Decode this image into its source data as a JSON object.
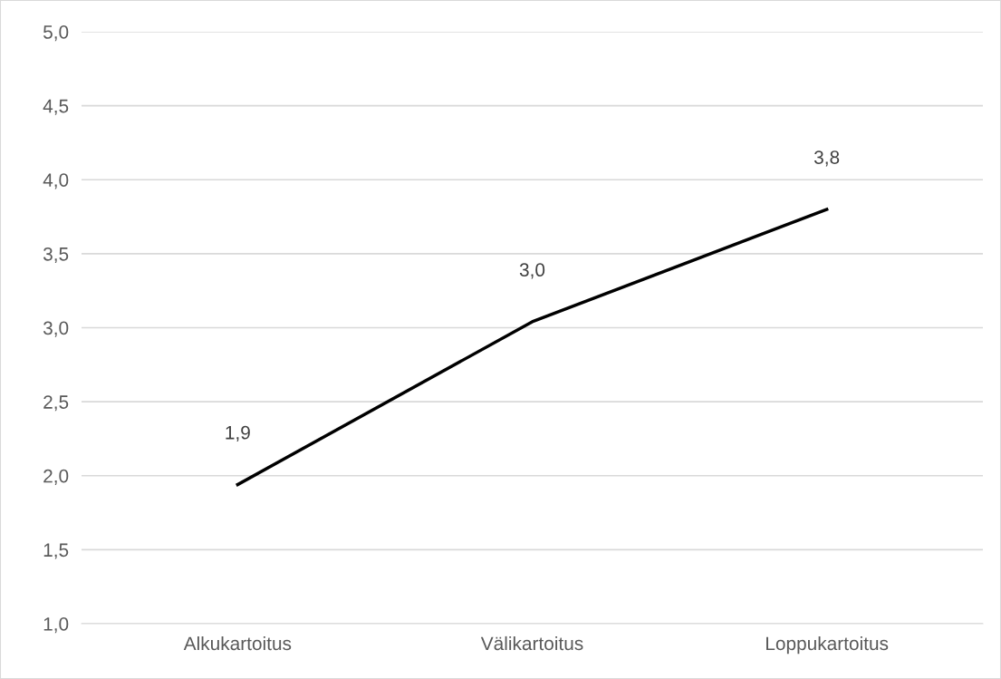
{
  "chart_data": {
    "type": "line",
    "categories": [
      "Alkukartoitus",
      "Välikartoitus",
      "Loppukartoitus"
    ],
    "series": [
      {
        "color": "#000000",
        "values": [
          1.94,
          3.04,
          3.8
        ],
        "value_labels": [
          "1,9",
          "3,0",
          "3,8"
        ]
      }
    ],
    "ylim": [
      1.0,
      5.0
    ],
    "yticks": [
      {
        "value": 1.0,
        "label": "1,0"
      },
      {
        "value": 1.5,
        "label": "1,5"
      },
      {
        "value": 2.0,
        "label": "2,0"
      },
      {
        "value": 2.5,
        "label": "2,5"
      },
      {
        "value": 3.0,
        "label": "3,0"
      },
      {
        "value": 3.5,
        "label": "3,5"
      },
      {
        "value": 4.0,
        "label": "4,0"
      },
      {
        "value": 4.5,
        "label": "4,5"
      },
      {
        "value": 5.0,
        "label": "5,0"
      }
    ],
    "grid": "y",
    "marker": "none",
    "line_style": "solid"
  }
}
